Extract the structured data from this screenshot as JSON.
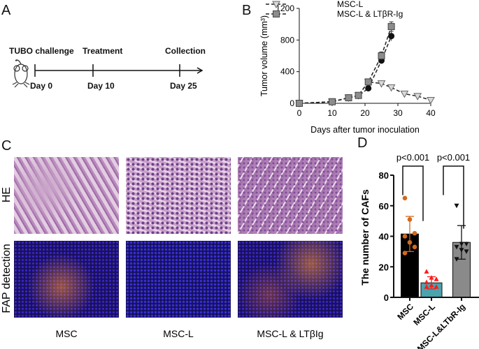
{
  "panels": {
    "a": "A",
    "b": "B",
    "c": "C",
    "d": "D"
  },
  "timeline": {
    "events": [
      {
        "label": "TUBO challenge",
        "day": "Day 0"
      },
      {
        "label": "Treatment",
        "day": "Day 10"
      },
      {
        "label": "Collection",
        "day": "Day 25"
      }
    ],
    "icon": "mouse-icon"
  },
  "histology": {
    "rows": [
      "HE",
      "FAP detection"
    ],
    "columns": [
      "MSC",
      "MSC-L",
      "MSC-L & LTβIg"
    ]
  },
  "chart_data": [
    {
      "type": "line",
      "xlabel": "Days after tumor inoculation",
      "ylabel": "Tumor volume (mm³)",
      "xlim": [
        0,
        40
      ],
      "ylim": [
        0,
        1200
      ],
      "xticks": [
        "0",
        "10",
        "20",
        "30",
        "40"
      ],
      "yticks": [
        "0",
        "400",
        "800",
        "1200"
      ],
      "legend_position": "top",
      "series": [
        {
          "marker": "circle",
          "color": "#111111",
          "x": [
            0,
            10,
            15,
            18,
            21,
            25,
            28
          ],
          "y": [
            0,
            20,
            70,
            95,
            190,
            540,
            850
          ],
          "err": [
            0,
            5,
            10,
            10,
            15,
            40,
            60
          ]
        },
        {
          "name": "MSC-L",
          "marker": "triangle-down",
          "color": "#d9d9d9",
          "x": [
            0,
            10,
            15,
            18,
            21,
            25,
            28,
            32,
            36,
            40
          ],
          "y": [
            0,
            20,
            70,
            100,
            270,
            250,
            200,
            120,
            90,
            40
          ],
          "err": [
            0,
            5,
            10,
            10,
            15,
            15,
            15,
            10,
            10,
            8
          ]
        },
        {
          "name": "MSC-L & LTβR-Ig",
          "marker": "square",
          "color": "#8c8c8c",
          "x": [
            0,
            10,
            15,
            18,
            21,
            25,
            28
          ],
          "y": [
            0,
            20,
            70,
            100,
            270,
            600,
            970
          ],
          "err": [
            0,
            5,
            10,
            10,
            15,
            50,
            60
          ]
        }
      ]
    },
    {
      "type": "bar",
      "ylabel": "The number of CAFs",
      "ylim": [
        0,
        80
      ],
      "yticks": [
        "0",
        "20",
        "40",
        "60",
        "80"
      ],
      "categories": [
        "MSC",
        "MSC-L",
        "MSC-L&LTbR-Ig"
      ],
      "values": [
        41.5,
        9.5,
        36
      ],
      "sd": [
        11.5,
        4,
        11
      ],
      "colors": [
        "#000000",
        "#4aa3ad",
        "#8a8a8a"
      ],
      "points": [
        [
          65,
          51,
          42,
          40,
          36,
          33,
          29
        ],
        [
          17,
          13,
          12,
          10,
          8,
          7,
          7
        ],
        [
          60,
          35,
          35,
          33,
          31,
          30,
          25
        ]
      ],
      "point_colors": [
        "#d2691e",
        "#ff1a1a",
        "#111111"
      ],
      "annotations": [
        {
          "between": [
            "MSC",
            "MSC-L"
          ],
          "text": "p<0.001"
        },
        {
          "between": [
            "MSC-L",
            "MSC-L&LTbR-Ig"
          ],
          "text": "p<0.001"
        }
      ]
    }
  ]
}
